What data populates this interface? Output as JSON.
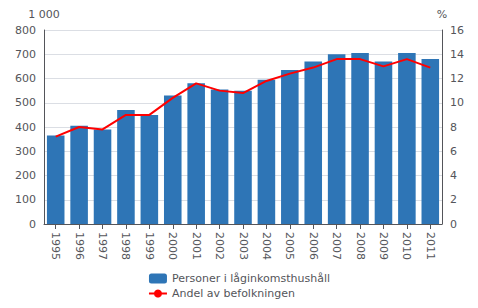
{
  "chart_data": {
    "type": "bar",
    "categories": [
      "1995",
      "1996",
      "1997",
      "1998",
      "1999",
      "2000",
      "2001",
      "2002",
      "2003",
      "2004",
      "2005",
      "2006",
      "2007",
      "2008",
      "2009",
      "2010",
      "2011"
    ],
    "series": [
      {
        "name": "Personer i låginkomsthushåll",
        "type": "bar",
        "color": "#2E75B6",
        "values": [
          365,
          405,
          390,
          470,
          450,
          530,
          580,
          555,
          550,
          595,
          635,
          670,
          700,
          705,
          670,
          705,
          680
        ]
      },
      {
        "name": "Andel av befolkningen",
        "type": "line",
        "color": "#FF0000",
        "axis": "y2",
        "values": [
          7.2,
          8.0,
          7.8,
          9.0,
          9.0,
          10.4,
          11.6,
          11.0,
          10.8,
          11.8,
          12.4,
          12.9,
          13.6,
          13.6,
          13.0,
          13.6,
          12.9
        ]
      }
    ],
    "y_label": "1 000",
    "y2_label": "%",
    "ylim": [
      0,
      800
    ],
    "yticks": [
      0,
      100,
      200,
      300,
      400,
      500,
      600,
      700,
      800
    ],
    "y2lim": [
      0,
      16
    ],
    "y2ticks": [
      0,
      2,
      4,
      6,
      8,
      10,
      12,
      14,
      16
    ],
    "grid": true,
    "legend": "bottom"
  }
}
